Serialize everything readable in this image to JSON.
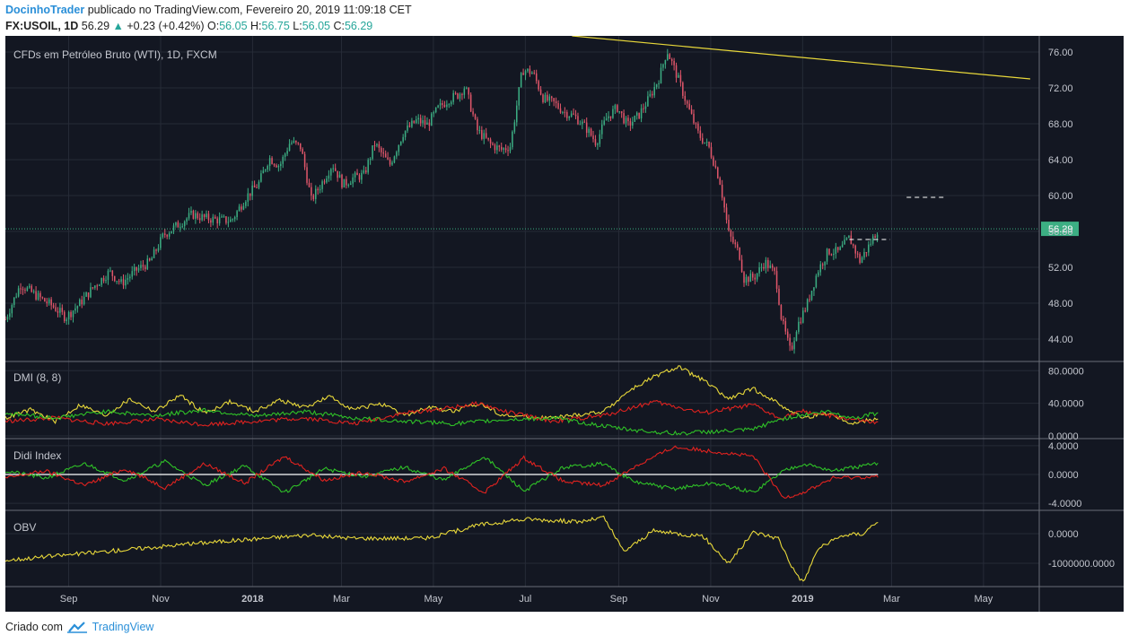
{
  "header": {
    "author": "DocinhoTrader",
    "published_text": "publicado no TradingView.com, Fevereiro 20, 2019 11:09:18 CET",
    "symbol": "FX:USOIL, 1D",
    "last": "56.29",
    "change": "+0.23 (+0.42%)",
    "o_label": "O:",
    "o_value": "56.05",
    "h_label": "H:",
    "h_value": "56.75",
    "l_label": "L:",
    "l_value": "56.05",
    "c_label": "C:",
    "c_value": "56.29"
  },
  "footer": {
    "created_with": "Criado com",
    "brand": "TradingView"
  },
  "colors": {
    "background": "#131722",
    "up": "#3cae83",
    "down": "#e0566a",
    "grid": "#262b37",
    "axis_text": "#c3c6ce",
    "yellow": "#e8d83a",
    "red": "#e0221f",
    "green": "#2fc127",
    "white": "#ffffff",
    "last_price": "#3cae83"
  },
  "chart_data": [
    {
      "type": "candlestick",
      "title": "CFDs em Petróleo Bruto (WTI), 1D, FXCM",
      "x_range": [
        "2017-07-21",
        "2019-06-07"
      ],
      "x_ticks": [
        {
          "date": "2017-09-01",
          "label": "Sep"
        },
        {
          "date": "2017-11-01",
          "label": "Nov"
        },
        {
          "date": "2018-01-01",
          "label": "2018",
          "bold": true
        },
        {
          "date": "2018-03-01",
          "label": "Mar"
        },
        {
          "date": "2018-05-01",
          "label": "May"
        },
        {
          "date": "2018-07-01",
          "label": "Jul"
        },
        {
          "date": "2018-09-01",
          "label": "Sep"
        },
        {
          "date": "2018-11-01",
          "label": "Nov"
        },
        {
          "date": "2019-01-01",
          "label": "2019",
          "bold": true
        },
        {
          "date": "2019-03-01",
          "label": "Mar"
        },
        {
          "date": "2019-05-01",
          "label": "May"
        }
      ],
      "ylim": [
        41.5,
        77.8
      ],
      "y_ticks": [
        76.0,
        72.0,
        68.0,
        64.0,
        60.0,
        56.0,
        52.0,
        48.0,
        44.0
      ],
      "last_price": 56.29,
      "last_date": "2019-02-20",
      "closes": [
        [
          "2017-07-21",
          46.2
        ],
        [
          "2017-07-31",
          50.1
        ],
        [
          "2017-08-10",
          48.9
        ],
        [
          "2017-08-22",
          47.6
        ],
        [
          "2017-08-30",
          46.4
        ],
        [
          "2017-09-08",
          47.9
        ],
        [
          "2017-09-18",
          49.9
        ],
        [
          "2017-09-28",
          51.5
        ],
        [
          "2017-10-06",
          50.2
        ],
        [
          "2017-10-16",
          51.7
        ],
        [
          "2017-10-25",
          52.6
        ],
        [
          "2017-11-03",
          55.6
        ],
        [
          "2017-11-13",
          56.8
        ],
        [
          "2017-11-22",
          57.9
        ],
        [
          "2017-11-30",
          57.5
        ],
        [
          "2017-12-08",
          57.3
        ],
        [
          "2017-12-18",
          57.2
        ],
        [
          "2017-12-28",
          59.9
        ],
        [
          "2018-01-05",
          61.3
        ],
        [
          "2018-01-12",
          64.2
        ],
        [
          "2018-01-19",
          63.3
        ],
        [
          "2018-01-26",
          66.0
        ],
        [
          "2018-02-02",
          65.4
        ],
        [
          "2018-02-09",
          59.5
        ],
        [
          "2018-02-16",
          61.4
        ],
        [
          "2018-02-23",
          63.5
        ],
        [
          "2018-03-02",
          61.2
        ],
        [
          "2018-03-09",
          62.0
        ],
        [
          "2018-03-16",
          62.3
        ],
        [
          "2018-03-23",
          65.8
        ],
        [
          "2018-04-02",
          63.4
        ],
        [
          "2018-04-11",
          67.0
        ],
        [
          "2018-04-20",
          68.4
        ],
        [
          "2018-04-27",
          67.9
        ],
        [
          "2018-05-04",
          69.7
        ],
        [
          "2018-05-11",
          70.7
        ],
        [
          "2018-05-18",
          71.3
        ],
        [
          "2018-05-22",
          72.2
        ],
        [
          "2018-05-30",
          67.3
        ],
        [
          "2018-06-08",
          65.7
        ],
        [
          "2018-06-15",
          65.1
        ],
        [
          "2018-06-21",
          65.5
        ],
        [
          "2018-06-29",
          74.0
        ],
        [
          "2018-07-06",
          73.7
        ],
        [
          "2018-07-13",
          70.8
        ],
        [
          "2018-07-20",
          70.3
        ],
        [
          "2018-07-27",
          69.3
        ],
        [
          "2018-08-03",
          68.8
        ],
        [
          "2018-08-10",
          67.6
        ],
        [
          "2018-08-17",
          65.9
        ],
        [
          "2018-08-24",
          68.7
        ],
        [
          "2018-08-31",
          69.8
        ],
        [
          "2018-09-07",
          67.8
        ],
        [
          "2018-09-14",
          68.9
        ],
        [
          "2018-09-21",
          70.8
        ],
        [
          "2018-09-28",
          73.2
        ],
        [
          "2018-10-03",
          76.2
        ],
        [
          "2018-10-10",
          73.2
        ],
        [
          "2018-10-17",
          69.8
        ],
        [
          "2018-10-24",
          66.8
        ],
        [
          "2018-10-31",
          65.3
        ],
        [
          "2018-11-07",
          61.7
        ],
        [
          "2018-11-13",
          55.7
        ],
        [
          "2018-11-20",
          53.5
        ],
        [
          "2018-11-23",
          50.7
        ],
        [
          "2018-11-30",
          50.9
        ],
        [
          "2018-12-07",
          52.6
        ],
        [
          "2018-12-14",
          51.2
        ],
        [
          "2018-12-18",
          46.2
        ],
        [
          "2018-12-24",
          42.5
        ],
        [
          "2018-12-28",
          45.3
        ],
        [
          "2019-01-04",
          47.9
        ],
        [
          "2019-01-11",
          51.6
        ],
        [
          "2019-01-18",
          53.8
        ],
        [
          "2019-01-25",
          53.7
        ],
        [
          "2019-02-01",
          55.3
        ],
        [
          "2019-02-08",
          52.7
        ],
        [
          "2019-02-14",
          54.4
        ],
        [
          "2019-02-20",
          56.29
        ]
      ],
      "trendline": {
        "from": [
          "2018-08-01",
          77.8
        ],
        "to": [
          "2019-06-01",
          73.0
        ]
      },
      "dashed_levels": [
        {
          "from": "2019-02-01",
          "to": "2019-02-28",
          "value": 55.1
        },
        {
          "from": "2019-03-11",
          "to": "2019-04-06",
          "value": 59.8
        }
      ]
    },
    {
      "type": "line",
      "title": "DMI (8, 8)",
      "ylim": [
        0,
        88
      ],
      "y_ticks": [
        {
          "value": 80,
          "label": "80.0000"
        },
        {
          "value": 40,
          "label": "40.0000"
        },
        {
          "value": 0,
          "label": "0.0000"
        }
      ],
      "series": [
        {
          "color": "yellow",
          "values": [
            [
              0,
              22
            ],
            [
              5,
              32
            ],
            [
              10,
              18
            ],
            [
              15,
              38
            ],
            [
              20,
              25
            ],
            [
              25,
              45
            ],
            [
              30,
              30
            ],
            [
              35,
              50
            ],
            [
              40,
              28
            ],
            [
              45,
              42
            ],
            [
              50,
              30
            ],
            [
              55,
              44
            ],
            [
              60,
              35
            ],
            [
              65,
              48
            ],
            [
              70,
              32
            ],
            [
              75,
              40
            ],
            [
              80,
              25
            ],
            [
              85,
              35
            ],
            [
              90,
              30
            ],
            [
              95,
              40
            ],
            [
              100,
              25
            ],
            [
              110,
              22
            ],
            [
              120,
              30
            ],
            [
              125,
              55
            ],
            [
              130,
              72
            ],
            [
              135,
              85
            ],
            [
              140,
              68
            ],
            [
              145,
              45
            ],
            [
              150,
              58
            ],
            [
              155,
              40
            ],
            [
              160,
              22
            ],
            [
              165,
              28
            ],
            [
              170,
              15
            ],
            [
              175,
              22
            ]
          ]
        },
        {
          "color": "red",
          "values": [
            [
              0,
              18
            ],
            [
              10,
              22
            ],
            [
              20,
              15
            ],
            [
              30,
              20
            ],
            [
              40,
              14
            ],
            [
              50,
              18
            ],
            [
              60,
              22
            ],
            [
              70,
              15
            ],
            [
              80,
              28
            ],
            [
              90,
              35
            ],
            [
              95,
              40
            ],
            [
              100,
              30
            ],
            [
              110,
              18
            ],
            [
              120,
              25
            ],
            [
              130,
              42
            ],
            [
              135,
              35
            ],
            [
              140,
              28
            ],
            [
              150,
              38
            ],
            [
              155,
              22
            ],
            [
              160,
              30
            ],
            [
              170,
              20
            ],
            [
              175,
              15
            ]
          ]
        },
        {
          "color": "green",
          "values": [
            [
              0,
              28
            ],
            [
              10,
              22
            ],
            [
              20,
              30
            ],
            [
              30,
              25
            ],
            [
              40,
              32
            ],
            [
              50,
              24
            ],
            [
              60,
              30
            ],
            [
              70,
              22
            ],
            [
              80,
              18
            ],
            [
              90,
              15
            ],
            [
              100,
              20
            ],
            [
              110,
              22
            ],
            [
              120,
              12
            ],
            [
              125,
              8
            ],
            [
              130,
              5
            ],
            [
              135,
              3
            ],
            [
              140,
              5
            ],
            [
              145,
              6
            ],
            [
              150,
              8
            ],
            [
              155,
              20
            ],
            [
              160,
              26
            ],
            [
              165,
              30
            ],
            [
              170,
              22
            ],
            [
              175,
              28
            ]
          ]
        }
      ],
      "x_count": 176
    },
    {
      "type": "line",
      "title": "Didi Index",
      "ylim": [
        -4.6,
        4.6
      ],
      "y_ticks": [
        {
          "value": 4,
          "label": "4.0000"
        },
        {
          "value": 0,
          "label": "0.0000"
        },
        {
          "value": -4,
          "label": "-4.0000"
        }
      ],
      "zero_line": 0,
      "series": [
        {
          "color": "green",
          "values": [
            [
              0,
              0.5
            ],
            [
              8,
              -0.5
            ],
            [
              16,
              1.5
            ],
            [
              24,
              -0.8
            ],
            [
              32,
              1.8
            ],
            [
              40,
              -1.5
            ],
            [
              48,
              1.2
            ],
            [
              56,
              -2.5
            ],
            [
              64,
              0.8
            ],
            [
              72,
              -0.3
            ],
            [
              80,
              1.0
            ],
            [
              88,
              -0.8
            ],
            [
              96,
              2.5
            ],
            [
              104,
              -2.3
            ],
            [
              112,
              1.0
            ],
            [
              120,
              1.5
            ],
            [
              126,
              -1.0
            ],
            [
              134,
              -2.0
            ],
            [
              142,
              -1.2
            ],
            [
              150,
              -2.5
            ],
            [
              156,
              0.5
            ],
            [
              160,
              1.5
            ],
            [
              166,
              0.5
            ],
            [
              175,
              1.5
            ]
          ]
        },
        {
          "color": "red",
          "values": [
            [
              0,
              -0.5
            ],
            [
              8,
              0.5
            ],
            [
              16,
              -1.5
            ],
            [
              24,
              0.8
            ],
            [
              32,
              -1.8
            ],
            [
              40,
              1.5
            ],
            [
              48,
              -1.2
            ],
            [
              56,
              2.5
            ],
            [
              64,
              -0.8
            ],
            [
              72,
              0.3
            ],
            [
              80,
              -1.0
            ],
            [
              88,
              0.8
            ],
            [
              96,
              -2.5
            ],
            [
              104,
              2.3
            ],
            [
              112,
              -1.0
            ],
            [
              120,
              -1.5
            ],
            [
              126,
              1.0
            ],
            [
              134,
              3.8
            ],
            [
              142,
              3.2
            ],
            [
              150,
              2.5
            ],
            [
              156,
              -3.2
            ],
            [
              160,
              -2.5
            ],
            [
              166,
              -0.5
            ],
            [
              175,
              -0.3
            ]
          ]
        }
      ],
      "x_count": 176
    },
    {
      "type": "line",
      "title": "OBV",
      "ylim": [
        -1700000,
        700000
      ],
      "y_ticks": [
        {
          "value": 0,
          "label": "0.0000"
        },
        {
          "value": -1000000,
          "label": "-1000000.0000"
        }
      ],
      "series": [
        {
          "color": "yellow",
          "values": [
            [
              0,
              -900000
            ],
            [
              20,
              -600000
            ],
            [
              40,
              -300000
            ],
            [
              60,
              -50000
            ],
            [
              70,
              -150000
            ],
            [
              85,
              -150000
            ],
            [
              95,
              300000
            ],
            [
              105,
              500000
            ],
            [
              115,
              400000
            ],
            [
              120,
              550000
            ],
            [
              124,
              -600000
            ],
            [
              130,
              100000
            ],
            [
              140,
              -100000
            ],
            [
              145,
              -1000000
            ],
            [
              150,
              50000
            ],
            [
              155,
              -150000
            ],
            [
              158,
              -1200000
            ],
            [
              160,
              -1650000
            ],
            [
              163,
              -500000
            ],
            [
              168,
              -50000
            ],
            [
              172,
              0
            ],
            [
              175,
              450000
            ]
          ]
        }
      ],
      "x_count": 176
    }
  ]
}
